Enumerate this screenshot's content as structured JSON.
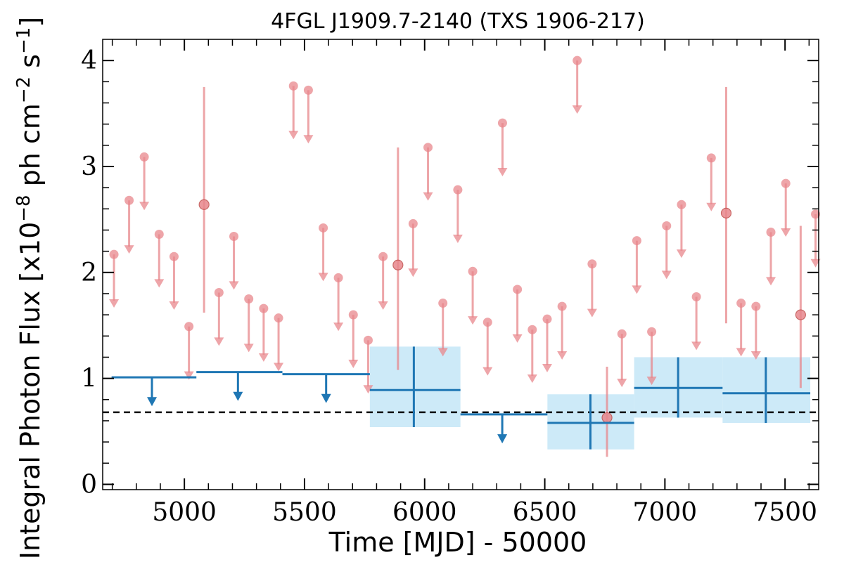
{
  "chart_data": {
    "type": "scatter",
    "title": "4FGL J1909.7-2140 (TXS 1906-217)",
    "xlabel": "Time [MJD] - 50000",
    "ylabel": "Integral Photon Flux [x10",
    "ylabel_exp1": "−8",
    "ylabel_mid": " ph cm",
    "ylabel_exp2": "−2",
    "ylabel_mid2": " s",
    "ylabel_exp3": "−1",
    "ylabel_end": "]",
    "xlim": [
      4660,
      7640
    ],
    "ylim": [
      -0.05,
      4.2
    ],
    "xticks": [
      5000,
      5500,
      6000,
      6500,
      7000,
      7500
    ],
    "xtick_labels": [
      "5000",
      "5500",
      "6000",
      "6500",
      "7000",
      "7500"
    ],
    "yticks": [
      0,
      1,
      2,
      3,
      4
    ],
    "ytick_labels": [
      "0",
      "1",
      "2",
      "3",
      "4"
    ],
    "mean_flux": 0.68,
    "colors": {
      "fine": "#e8878c",
      "coarse": "#1f77b4",
      "band": "#cdeaf8",
      "mean": "#000000"
    },
    "series": [
      {
        "name": "Fine-binned upper limits",
        "x": [
          4707,
          4770,
          4833,
          4895,
          4957,
          5019,
          5144,
          5206,
          5268,
          5330,
          5392,
          5454,
          5516,
          5578,
          5641,
          5703,
          5765,
          5827,
          5952,
          6014,
          6076,
          6138,
          6200,
          6262,
          6324,
          6386,
          6448,
          6510,
          6572,
          6635,
          6697,
          6821,
          6883,
          6945,
          7007,
          7069,
          7131,
          7193,
          7317,
          7379,
          7441,
          7503,
          7627
        ],
        "y": [
          2.17,
          2.68,
          3.09,
          2.36,
          2.15,
          1.49,
          1.81,
          2.34,
          1.75,
          1.66,
          1.57,
          3.76,
          3.72,
          2.42,
          1.95,
          1.6,
          1.36,
          2.15,
          2.46,
          3.18,
          1.71,
          2.78,
          2.01,
          1.53,
          3.41,
          1.84,
          1.46,
          1.56,
          1.68,
          4.0,
          2.08,
          1.42,
          2.3,
          1.44,
          2.44,
          2.64,
          1.77,
          3.08,
          1.71,
          1.68,
          2.38,
          2.84,
          2.55
        ]
      },
      {
        "name": "Fine-binned detections",
        "x": [
          5082,
          5889,
          6759,
          7255,
          7565
        ],
        "y": [
          2.64,
          2.07,
          0.63,
          2.56,
          1.6
        ],
        "ylow": [
          1.62,
          1.08,
          0.26,
          1.52,
          0.91
        ],
        "yhigh": [
          3.75,
          3.18,
          1.11,
          3.75,
          2.44
        ]
      },
      {
        "name": "Coarse-binned upper limits",
        "x": [
          4865,
          5223,
          5590,
          6323
        ],
        "xlow": [
          4697,
          5050,
          5408,
          6149
        ],
        "xhigh": [
          5050,
          5408,
          5772,
          6511
        ],
        "y": [
          1.01,
          1.06,
          1.04,
          0.66
        ]
      },
      {
        "name": "Coarse-binned detections",
        "x": [
          5955,
          6690,
          7055,
          7420
        ],
        "xlow": [
          5772,
          6511,
          6872,
          7240
        ],
        "xhigh": [
          6149,
          6872,
          7240,
          7605
        ],
        "y": [
          0.89,
          0.58,
          0.91,
          0.86
        ],
        "ylow": [
          0.54,
          0.33,
          0.63,
          0.58
        ],
        "yhigh": [
          1.3,
          0.85,
          1.2,
          1.2
        ]
      }
    ]
  }
}
